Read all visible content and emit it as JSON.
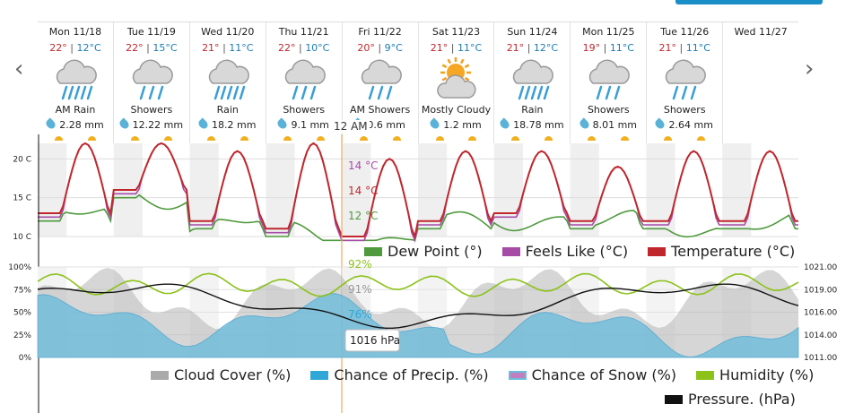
{
  "nav": {
    "prev_icon": "chevron-left-icon",
    "next_icon": "chevron-right-icon"
  },
  "days": [
    {
      "date": "Mon 11/18",
      "hi": "22°",
      "lo": "12°C",
      "icon": "rain-cloud-icon",
      "condition": "AM Rain",
      "precip": "2.28 mm"
    },
    {
      "date": "Tue 11/19",
      "hi": "22°",
      "lo": "15°C",
      "icon": "showers-cloud-icon",
      "condition": "Showers",
      "precip": "12.22 mm"
    },
    {
      "date": "Wed 11/20",
      "hi": "21°",
      "lo": "11°C",
      "icon": "rain-cloud-icon",
      "condition": "Rain",
      "precip": "18.2 mm"
    },
    {
      "date": "Thu 11/21",
      "hi": "22°",
      "lo": "10°C",
      "icon": "showers-cloud-icon",
      "condition": "Showers",
      "precip": "9.1 mm"
    },
    {
      "date": "Fri 11/22",
      "hi": "20°",
      "lo": "9°C",
      "icon": "showers-cloud-icon",
      "condition": "AM Showers",
      "precip": "0.6 mm"
    },
    {
      "date": "Sat 11/23",
      "hi": "21°",
      "lo": "11°C",
      "icon": "mostly-cloudy-icon",
      "condition": "Mostly Cloudy",
      "precip": "1.2 mm"
    },
    {
      "date": "Sun 11/24",
      "hi": "21°",
      "lo": "12°C",
      "icon": "rain-cloud-icon",
      "condition": "Rain",
      "precip": "18.78 mm"
    },
    {
      "date": "Mon 11/25",
      "hi": "19°",
      "lo": "11°C",
      "icon": "showers-cloud-icon",
      "condition": "Showers",
      "precip": "8.01 mm"
    },
    {
      "date": "Tue 11/26",
      "hi": "21°",
      "lo": "11°C",
      "icon": "showers-cloud-icon",
      "condition": "Showers",
      "precip": "2.64 mm"
    },
    {
      "date": "Wed 11/27",
      "hi": "",
      "lo": "",
      "icon": "",
      "condition": "",
      "precip": ""
    }
  ],
  "now_label": "12 AM",
  "chart_data": [
    {
      "type": "line",
      "ylim": [
        10,
        22
      ],
      "y_ticks": [
        "20 C",
        "15 C",
        "10 C"
      ],
      "legend": [
        "Dew Point (°)",
        "Feels Like (°C)",
        "Temperature (°C)"
      ],
      "legend_position": "bottom-right",
      "tooltip": {
        "temperature": "14 °C",
        "feels_like": "14 °C",
        "dew_point": "12 °C"
      },
      "colors": {
        "temperature": "#c0272d",
        "feels_like": "#a64ca6",
        "dew_point": "#4e9a3c"
      },
      "day_highs": [
        22,
        22,
        21,
        22,
        20,
        21,
        21,
        19,
        21
      ],
      "day_lows": [
        12,
        15,
        11,
        10,
        9,
        11,
        12,
        11,
        11
      ]
    },
    {
      "type": "area",
      "ylim": [
        0,
        100
      ],
      "y_ticks_left": [
        "100%",
        "75%",
        "50%",
        "25%",
        "0%"
      ],
      "y_ticks_right": [
        "1021.00",
        "1019.00",
        "1016.00",
        "1014.00",
        "1011.00"
      ],
      "legend": [
        "Cloud Cover (%)",
        "Chance of Precip. (%)",
        "Chance of Snow (%)",
        "Humidity (%)",
        "Pressure. (hPa)"
      ],
      "legend_position": "bottom-right",
      "tooltip": {
        "humidity": "92%",
        "cloud_cover": "91%",
        "precip_chance": "76%",
        "pressure": "1016 hPa"
      },
      "colors": {
        "cloud": "#b4b4b4",
        "precip": "#6dbcdc",
        "snow": "#c27fbf",
        "humidity": "#8cc21a",
        "pressure": "#111111"
      }
    }
  ]
}
